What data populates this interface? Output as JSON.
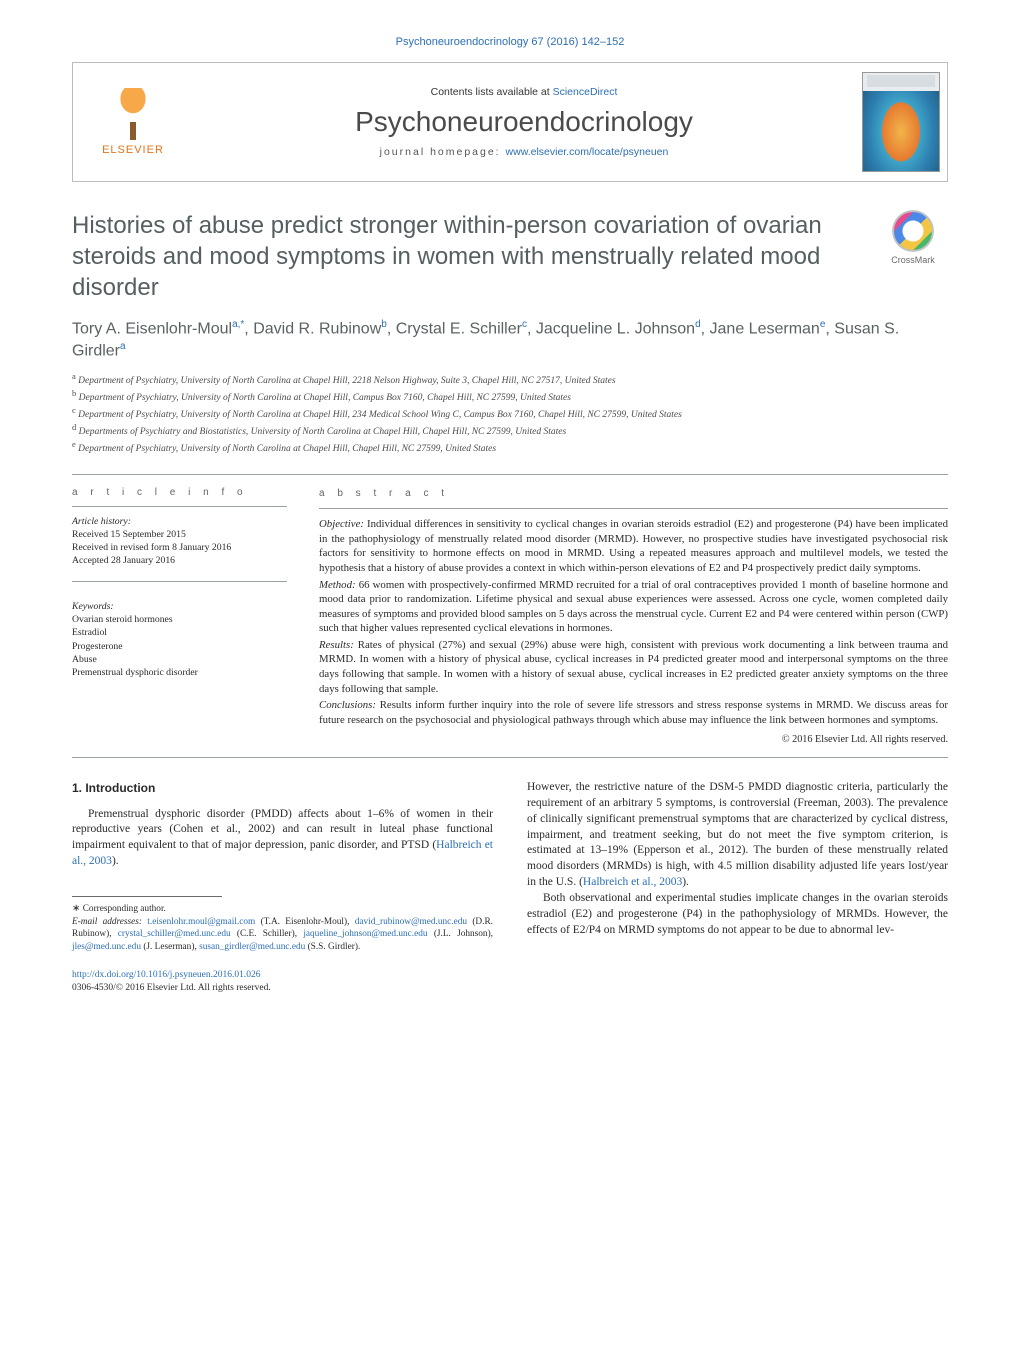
{
  "running_header": "Psychoneuroendocrinology 67 (2016) 142–152",
  "banner": {
    "contents_prefix": "Contents lists available at ",
    "contents_link": "ScienceDirect",
    "journal_title": "Psychoneuroendocrinology",
    "homepage_prefix": "journal homepage: ",
    "homepage_link": "www.elsevier.com/locate/psyneuen",
    "publisher": "ELSEVIER"
  },
  "crossmark_label": "CrossMark",
  "article_title": "Histories of abuse predict stronger within-person covariation of ovarian steroids and mood symptoms in women with menstrually related mood disorder",
  "authors": [
    {
      "name": "Tory A. Eisenlohr-Moul",
      "sup": "a,*"
    },
    {
      "name": "David R. Rubinow",
      "sup": "b"
    },
    {
      "name": "Crystal E. Schiller",
      "sup": "c"
    },
    {
      "name": "Jacqueline L. Johnson",
      "sup": "d"
    },
    {
      "name": "Jane Leserman",
      "sup": "e"
    },
    {
      "name": "Susan S. Girdler",
      "sup": "a"
    }
  ],
  "affiliations": [
    {
      "sup": "a",
      "text": "Department of Psychiatry, University of North Carolina at Chapel Hill, 2218 Nelson Highway, Suite 3, Chapel Hill, NC 27517, United States"
    },
    {
      "sup": "b",
      "text": "Department of Psychiatry, University of North Carolina at Chapel Hill, Campus Box 7160, Chapel Hill, NC 27599, United States"
    },
    {
      "sup": "c",
      "text": "Department of Psychiatry, University of North Carolina at Chapel Hill, 234 Medical School Wing C, Campus Box 7160, Chapel Hill, NC 27599, United States"
    },
    {
      "sup": "d",
      "text": "Departments of Psychiatry and Biostatistics, University of North Carolina at Chapel Hill, Chapel Hill, NC 27599, United States"
    },
    {
      "sup": "e",
      "text": "Department of Psychiatry, University of North Carolina at Chapel Hill, Chapel Hill, NC 27599, United States"
    }
  ],
  "article_info_label": "a r t i c l e   i n f o",
  "abstract_label": "a b s t r a c t",
  "history": {
    "heading": "Article history:",
    "received": "Received 15 September 2015",
    "revised": "Received in revised form 8 January 2016",
    "accepted": "Accepted 28 January 2016"
  },
  "keywords_heading": "Keywords:",
  "keywords": [
    "Ovarian steroid hormones",
    "Estradiol",
    "Progesterone",
    "Abuse",
    "Premenstrual dysphoric disorder"
  ],
  "abstract": {
    "objective_label": "Objective:",
    "objective": "Individual differences in sensitivity to cyclical changes in ovarian steroids estradiol (E2) and progesterone (P4) have been implicated in the pathophysiology of menstrually related mood disorder (MRMD). However, no prospective studies have investigated psychosocial risk factors for sensitivity to hormone effects on mood in MRMD. Using a repeated measures approach and multilevel models, we tested the hypothesis that a history of abuse provides a context in which within-person elevations of E2 and P4 prospectively predict daily symptoms.",
    "method_label": "Method:",
    "method": "66 women with prospectively-confirmed MRMD recruited for a trial of oral contraceptives provided 1 month of baseline hormone and mood data prior to randomization. Lifetime physical and sexual abuse experiences were assessed. Across one cycle, women completed daily measures of symptoms and provided blood samples on 5 days across the menstrual cycle. Current E2 and P4 were centered within person (CWP) such that higher values represented cyclical elevations in hormones.",
    "results_label": "Results:",
    "results": "Rates of physical (27%) and sexual (29%) abuse were high, consistent with previous work documenting a link between trauma and MRMD. In women with a history of physical abuse, cyclical increases in P4 predicted greater mood and interpersonal symptoms on the three days following that sample. In women with a history of sexual abuse, cyclical increases in E2 predicted greater anxiety symptoms on the three days following that sample.",
    "conclusions_label": "Conclusions:",
    "conclusions": "Results inform further inquiry into the role of severe life stressors and stress response systems in MRMD. We discuss areas for future research on the psychosocial and physiological pathways through which abuse may influence the link between hormones and symptoms."
  },
  "copyright": "© 2016 Elsevier Ltd. All rights reserved.",
  "intro_heading": "1.  Introduction",
  "intro_col1": "Premenstrual dysphoric disorder (PMDD) affects about 1–6% of women in their reproductive years (Cohen et al., 2002) and can result in luteal phase functional impairment equivalent to that of major depression, panic disorder, and PTSD (",
  "intro_col1_link": "Halbreich et al., 2003",
  "intro_col1_end": ").",
  "intro_col2_p1": "However, the restrictive nature of the DSM-5 PMDD diagnostic criteria, particularly the requirement of an arbitrary 5 symptoms, is controversial (Freeman, 2003). The prevalence of clinically significant premenstrual symptoms that are characterized by cyclical distress, impairment, and treatment seeking, but do not meet the five symptom criterion, is estimated at 13–19% (Epperson et al., 2012). The burden of these menstrually related mood disorders (MRMDs) is high, with 4.5 million disability adjusted life years lost/year in the U.S. (",
  "intro_col2_p1_link": "Halbreich et al., 2003",
  "intro_col2_p1_end": ").",
  "intro_col2_p2": "Both observational and experimental studies implicate changes in the ovarian steroids estradiol (E2) and progesterone (P4) in the pathophysiology of MRMDs. However, the effects of E2/P4 on MRMD symptoms do not appear to be due to abnormal lev-",
  "footnotes": {
    "corresponding": "Corresponding author.",
    "email_label": "E-mail addresses:",
    "emails": [
      {
        "addr": "t.eisenlohr.moul@gmail.com",
        "who": "(T.A. Eisenlohr-Moul)"
      },
      {
        "addr": "david_rubinow@med.unc.edu",
        "who": "(D.R. Rubinow)"
      },
      {
        "addr": "crystal_schiller@med.unc.edu",
        "who": "(C.E. Schiller)"
      },
      {
        "addr": "jaqueline_johnson@med.unc.edu",
        "who": "(J.L. Johnson)"
      },
      {
        "addr": "jles@med.unc.edu",
        "who": "(J. Leserman)"
      },
      {
        "addr": "susan_girdler@med.unc.edu",
        "who": "(S.S. Girdler)."
      }
    ]
  },
  "doi": {
    "link": "http://dx.doi.org/10.1016/j.psyneuen.2016.01.026",
    "issn_line": "0306-4530/© 2016 Elsevier Ltd. All rights reserved."
  },
  "colors": {
    "link": "#2d6fb4",
    "heading_gray": "#555f61",
    "rule": "#9aa0a3",
    "elsevier_orange": "#e6731a"
  }
}
